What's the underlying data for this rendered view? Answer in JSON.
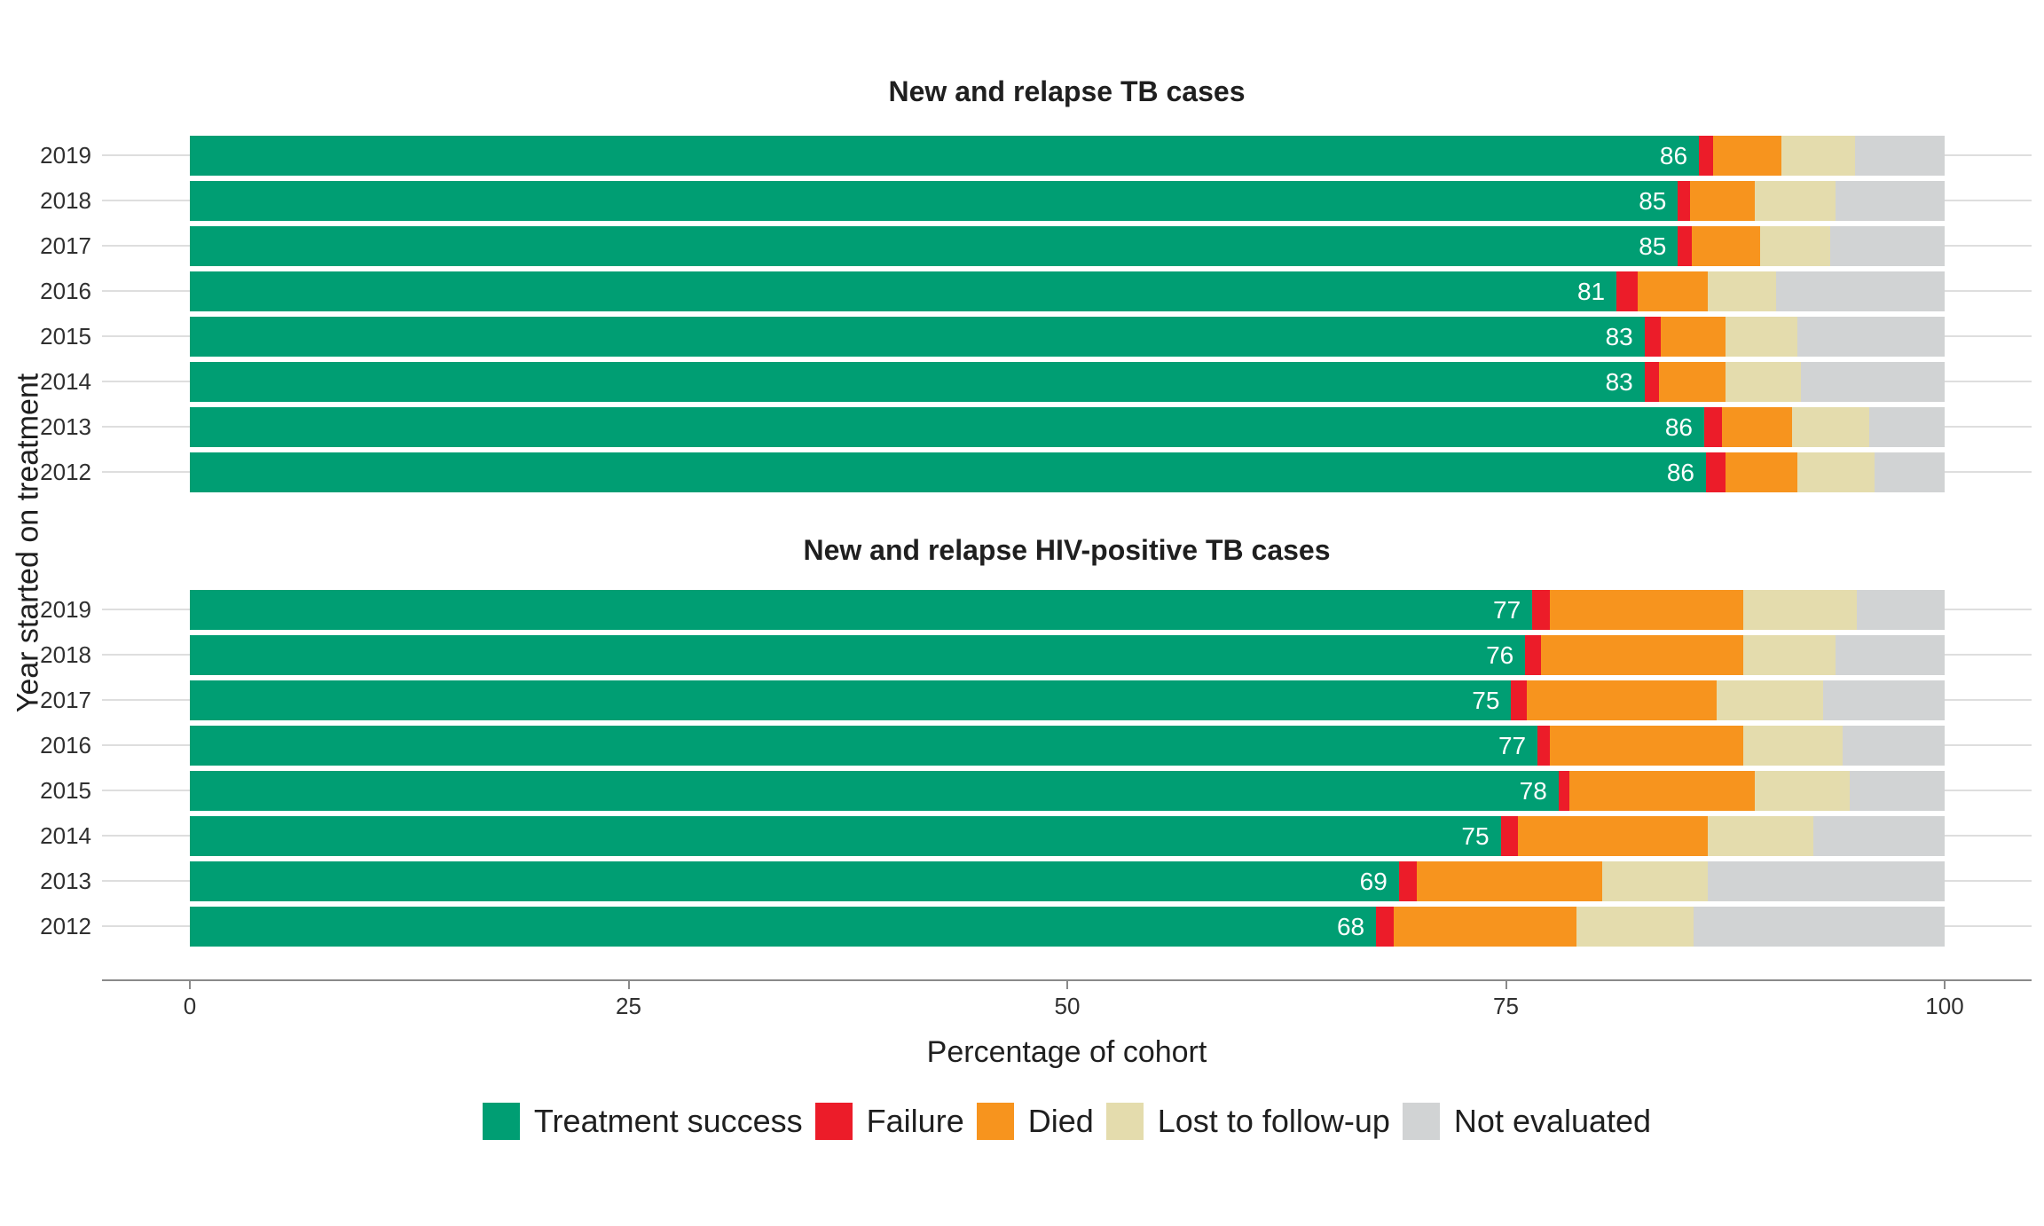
{
  "y_axis_title": "Year started on treatment",
  "x_axis": {
    "title": "Percentage of cohort",
    "ticks": [
      0,
      25,
      50,
      75,
      100
    ],
    "range": [
      0,
      100
    ]
  },
  "legend": [
    {
      "label": "Treatment success",
      "color": "#009E73"
    },
    {
      "label": "Failure",
      "color": "#EC1C29"
    },
    {
      "label": "Died",
      "color": "#F7941E"
    },
    {
      "label": "Lost to follow-up",
      "color": "#E4DCAD"
    },
    {
      "label": "Not evaluated",
      "color": "#D1D3D4"
    }
  ],
  "grid_color": "#DEDEDE",
  "axis_color": "#8A8A8A",
  "chart_data": [
    {
      "type": "bar",
      "orientation": "horizontal",
      "stacked": true,
      "title": "New and relapse TB cases",
      "xlabel": "Percentage of cohort",
      "xlim": [
        0,
        100
      ],
      "categories": [
        "2019",
        "2018",
        "2017",
        "2016",
        "2015",
        "2014",
        "2013",
        "2012"
      ],
      "series": [
        {
          "name": "Treatment success",
          "values": [
            86.0,
            84.8,
            84.8,
            81.3,
            82.9,
            82.9,
            86.3,
            86.4
          ]
        },
        {
          "name": "Failure",
          "values": [
            0.8,
            0.7,
            0.8,
            1.2,
            0.9,
            0.8,
            1.0,
            1.1
          ]
        },
        {
          "name": "Died",
          "values": [
            3.9,
            3.7,
            3.9,
            4.0,
            3.7,
            3.8,
            4.0,
            4.1
          ]
        },
        {
          "name": "Lost to follow-up",
          "values": [
            4.2,
            4.6,
            4.0,
            3.9,
            4.1,
            4.3,
            4.4,
            4.4
          ]
        },
        {
          "name": "Not evaluated",
          "values": [
            5.1,
            6.2,
            6.5,
            9.6,
            8.4,
            8.2,
            4.3,
            4.0
          ]
        }
      ],
      "bar_labels": [
        86,
        85,
        85,
        81,
        83,
        83,
        86,
        86
      ]
    },
    {
      "type": "bar",
      "orientation": "horizontal",
      "stacked": true,
      "title": "New and relapse HIV-positive TB cases",
      "xlabel": "Percentage of cohort",
      "xlim": [
        0,
        100
      ],
      "categories": [
        "2019",
        "2018",
        "2017",
        "2016",
        "2015",
        "2014",
        "2013",
        "2012"
      ],
      "series": [
        {
          "name": "Treatment success",
          "values": [
            76.5,
            76.1,
            75.3,
            76.8,
            78.0,
            74.7,
            68.9,
            67.6
          ]
        },
        {
          "name": "Failure",
          "values": [
            1.0,
            0.9,
            0.9,
            0.7,
            0.6,
            1.0,
            1.0,
            1.0
          ]
        },
        {
          "name": "Died",
          "values": [
            11.0,
            11.5,
            10.8,
            11.0,
            10.6,
            10.8,
            10.6,
            10.4
          ]
        },
        {
          "name": "Lost to follow-up",
          "values": [
            6.5,
            5.3,
            6.1,
            5.7,
            5.4,
            6.0,
            6.0,
            6.7
          ]
        },
        {
          "name": "Not evaluated",
          "values": [
            5.0,
            6.2,
            6.9,
            5.8,
            5.4,
            7.5,
            13.5,
            14.3
          ]
        }
      ],
      "bar_labels": [
        77,
        76,
        75,
        77,
        78,
        75,
        69,
        68
      ]
    }
  ]
}
